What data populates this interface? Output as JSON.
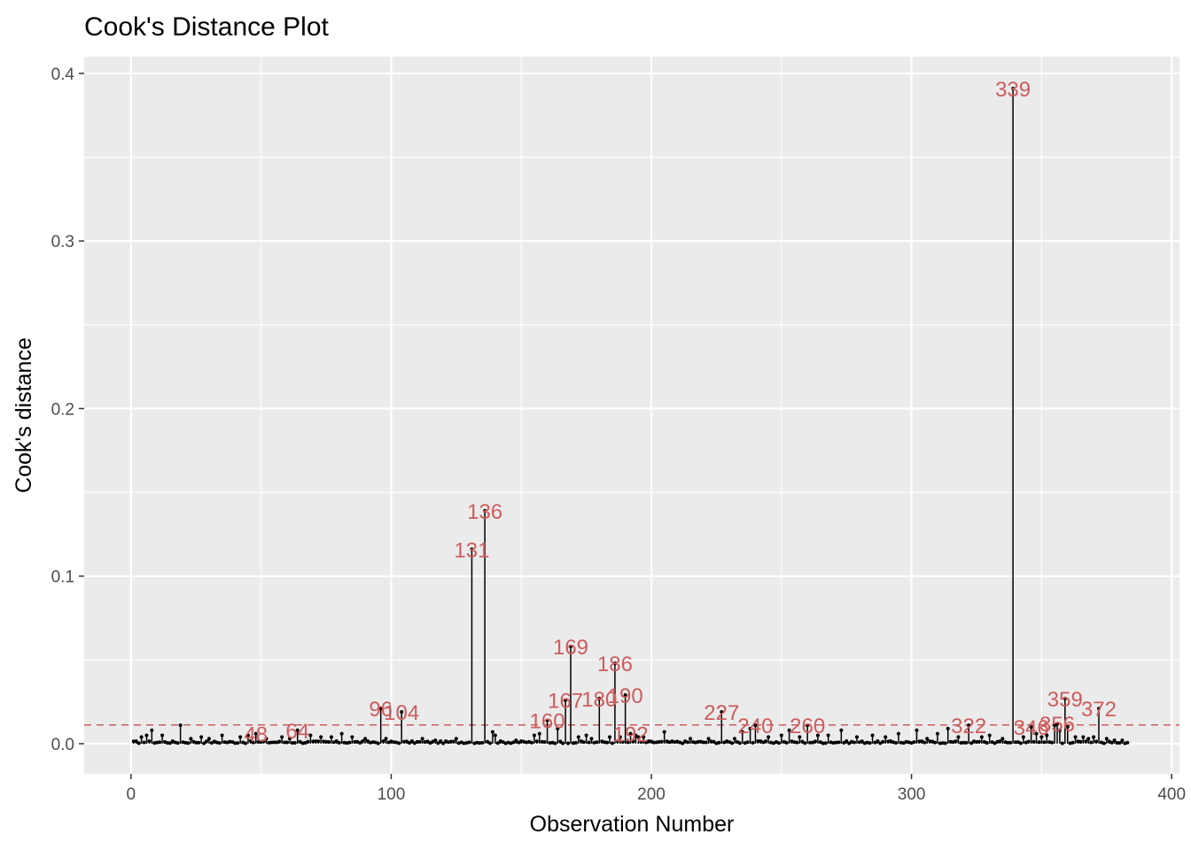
{
  "chart_data": {
    "type": "scatter",
    "title": "Cook's Distance Plot",
    "xlabel": "Observation Number",
    "ylabel": "Cook's distance",
    "xlim": [
      -18,
      403
    ],
    "ylim": [
      -0.018,
      0.41
    ],
    "x_ticks": [
      0,
      100,
      200,
      300,
      400
    ],
    "x_tick_labels": [
      "0",
      "100",
      "200",
      "300",
      "400"
    ],
    "y_ticks": [
      0.0,
      0.1,
      0.2,
      0.3,
      0.4
    ],
    "y_tick_labels": [
      "0.0",
      "0.1",
      "0.2",
      "0.3",
      "0.4"
    ],
    "grid": true,
    "threshold": 0.0112,
    "n_observations": 383,
    "colors": {
      "panel": "#ebebeb",
      "grid": "#ffffff",
      "stem": "#000000",
      "threshold": "#cd5c5c",
      "label": "#cd5c5c"
    },
    "notable_points": [
      {
        "obs": 4,
        "d": 0.004
      },
      {
        "obs": 6,
        "d": 0.005
      },
      {
        "obs": 8,
        "d": 0.008
      },
      {
        "obs": 12,
        "d": 0.005
      },
      {
        "obs": 19,
        "d": 0.011
      },
      {
        "obs": 23,
        "d": 0.003
      },
      {
        "obs": 27,
        "d": 0.004
      },
      {
        "obs": 30,
        "d": 0.003
      },
      {
        "obs": 35,
        "d": 0.005
      },
      {
        "obs": 42,
        "d": 0.004
      },
      {
        "obs": 45,
        "d": 0.005
      },
      {
        "obs": 48,
        "d": 0.006
      },
      {
        "obs": 52,
        "d": 0.003
      },
      {
        "obs": 58,
        "d": 0.004
      },
      {
        "obs": 61,
        "d": 0.003
      },
      {
        "obs": 64,
        "d": 0.008
      },
      {
        "obs": 69,
        "d": 0.005
      },
      {
        "obs": 73,
        "d": 0.004
      },
      {
        "obs": 77,
        "d": 0.004
      },
      {
        "obs": 81,
        "d": 0.006
      },
      {
        "obs": 85,
        "d": 0.004
      },
      {
        "obs": 90,
        "d": 0.003
      },
      {
        "obs": 96,
        "d": 0.021
      },
      {
        "obs": 98,
        "d": 0.003
      },
      {
        "obs": 104,
        "d": 0.019
      },
      {
        "obs": 112,
        "d": 0.003
      },
      {
        "obs": 117,
        "d": 0.002
      },
      {
        "obs": 125,
        "d": 0.003
      },
      {
        "obs": 131,
        "d": 0.116
      },
      {
        "obs": 136,
        "d": 0.139
      },
      {
        "obs": 139,
        "d": 0.007
      },
      {
        "obs": 140,
        "d": 0.005
      },
      {
        "obs": 148,
        "d": 0.002
      },
      {
        "obs": 155,
        "d": 0.005
      },
      {
        "obs": 157,
        "d": 0.006
      },
      {
        "obs": 160,
        "d": 0.014
      },
      {
        "obs": 164,
        "d": 0.009
      },
      {
        "obs": 167,
        "d": 0.026
      },
      {
        "obs": 169,
        "d": 0.058
      },
      {
        "obs": 172,
        "d": 0.004
      },
      {
        "obs": 175,
        "d": 0.005
      },
      {
        "obs": 177,
        "d": 0.003
      },
      {
        "obs": 180,
        "d": 0.027
      },
      {
        "obs": 184,
        "d": 0.004
      },
      {
        "obs": 186,
        "d": 0.048
      },
      {
        "obs": 188,
        "d": 0.004
      },
      {
        "obs": 190,
        "d": 0.029
      },
      {
        "obs": 192,
        "d": 0.006
      },
      {
        "obs": 194,
        "d": 0.005
      },
      {
        "obs": 195,
        "d": 0.004
      },
      {
        "obs": 197,
        "d": 0.004
      },
      {
        "obs": 205,
        "d": 0.007
      },
      {
        "obs": 215,
        "d": 0.003
      },
      {
        "obs": 222,
        "d": 0.003
      },
      {
        "obs": 227,
        "d": 0.019
      },
      {
        "obs": 232,
        "d": 0.003
      },
      {
        "obs": 235,
        "d": 0.007
      },
      {
        "obs": 238,
        "d": 0.009
      },
      {
        "obs": 240,
        "d": 0.011
      },
      {
        "obs": 245,
        "d": 0.004
      },
      {
        "obs": 250,
        "d": 0.005
      },
      {
        "obs": 253,
        "d": 0.008
      },
      {
        "obs": 257,
        "d": 0.004
      },
      {
        "obs": 260,
        "d": 0.011
      },
      {
        "obs": 264,
        "d": 0.005
      },
      {
        "obs": 268,
        "d": 0.005
      },
      {
        "obs": 273,
        "d": 0.008
      },
      {
        "obs": 279,
        "d": 0.004
      },
      {
        "obs": 285,
        "d": 0.005
      },
      {
        "obs": 290,
        "d": 0.004
      },
      {
        "obs": 295,
        "d": 0.006
      },
      {
        "obs": 302,
        "d": 0.008
      },
      {
        "obs": 306,
        "d": 0.003
      },
      {
        "obs": 310,
        "d": 0.006
      },
      {
        "obs": 314,
        "d": 0.009
      },
      {
        "obs": 318,
        "d": 0.004
      },
      {
        "obs": 322,
        "d": 0.011
      },
      {
        "obs": 327,
        "d": 0.004
      },
      {
        "obs": 330,
        "d": 0.005
      },
      {
        "obs": 335,
        "d": 0.003
      },
      {
        "obs": 339,
        "d": 0.391
      },
      {
        "obs": 343,
        "d": 0.004
      },
      {
        "obs": 346,
        "d": 0.01
      },
      {
        "obs": 348,
        "d": 0.006
      },
      {
        "obs": 350,
        "d": 0.004
      },
      {
        "obs": 352,
        "d": 0.005
      },
      {
        "obs": 355,
        "d": 0.011
      },
      {
        "obs": 356,
        "d": 0.012
      },
      {
        "obs": 357,
        "d": 0.008
      },
      {
        "obs": 359,
        "d": 0.027
      },
      {
        "obs": 360,
        "d": 0.01
      },
      {
        "obs": 363,
        "d": 0.004
      },
      {
        "obs": 366,
        "d": 0.004
      },
      {
        "obs": 368,
        "d": 0.003
      },
      {
        "obs": 370,
        "d": 0.004
      },
      {
        "obs": 372,
        "d": 0.021
      },
      {
        "obs": 375,
        "d": 0.003
      },
      {
        "obs": 378,
        "d": 0.002
      },
      {
        "obs": 381,
        "d": 0.002
      }
    ],
    "labeled_points": [
      {
        "obs": 48,
        "d": 0.006,
        "label": "48"
      },
      {
        "obs": 64,
        "d": 0.008,
        "label": "64"
      },
      {
        "obs": 96,
        "d": 0.021,
        "label": "96"
      },
      {
        "obs": 104,
        "d": 0.019,
        "label": "104"
      },
      {
        "obs": 131,
        "d": 0.116,
        "label": "131"
      },
      {
        "obs": 136,
        "d": 0.139,
        "label": "136"
      },
      {
        "obs": 160,
        "d": 0.014,
        "label": "160"
      },
      {
        "obs": 167,
        "d": 0.026,
        "label": "167"
      },
      {
        "obs": 169,
        "d": 0.058,
        "label": "169"
      },
      {
        "obs": 180,
        "d": 0.027,
        "label": "180"
      },
      {
        "obs": 186,
        "d": 0.048,
        "label": "186"
      },
      {
        "obs": 190,
        "d": 0.029,
        "label": "190"
      },
      {
        "obs": 192,
        "d": 0.006,
        "label": "192"
      },
      {
        "obs": 227,
        "d": 0.019,
        "label": "227"
      },
      {
        "obs": 240,
        "d": 0.011,
        "label": "240"
      },
      {
        "obs": 260,
        "d": 0.011,
        "label": "260"
      },
      {
        "obs": 322,
        "d": 0.011,
        "label": "322"
      },
      {
        "obs": 339,
        "d": 0.391,
        "label": "339"
      },
      {
        "obs": 346,
        "d": 0.01,
        "label": "346"
      },
      {
        "obs": 356,
        "d": 0.012,
        "label": "356"
      },
      {
        "obs": 359,
        "d": 0.027,
        "label": "359"
      },
      {
        "obs": 372,
        "d": 0.021,
        "label": "372"
      }
    ]
  }
}
